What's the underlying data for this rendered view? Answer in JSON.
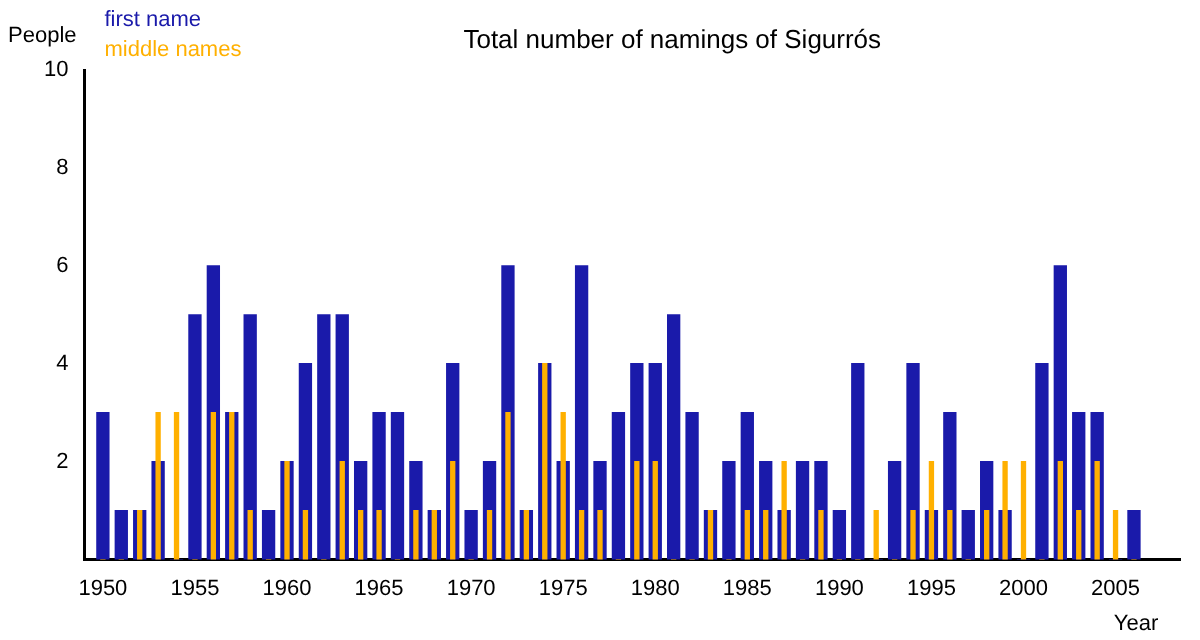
{
  "chart_data": {
    "type": "bar",
    "title": "Total number of namings of Sigurrós",
    "xlabel": "Year",
    "ylabel": "People",
    "x": [
      1950,
      1951,
      1952,
      1953,
      1954,
      1955,
      1956,
      1957,
      1958,
      1959,
      1960,
      1961,
      1962,
      1963,
      1964,
      1965,
      1966,
      1967,
      1968,
      1969,
      1970,
      1971,
      1972,
      1973,
      1974,
      1975,
      1976,
      1977,
      1978,
      1979,
      1980,
      1981,
      1982,
      1983,
      1984,
      1985,
      1986,
      1987,
      1988,
      1989,
      1990,
      1991,
      1992,
      1993,
      1994,
      1995,
      1996,
      1997,
      1998,
      1999,
      2000,
      2001,
      2002,
      2003,
      2004,
      2005,
      2006
    ],
    "series": [
      {
        "name": "first name",
        "color": "#1a1aaa",
        "values": [
          3,
          1,
          1,
          2,
          0,
          5,
          6,
          3,
          5,
          1,
          2,
          4,
          5,
          5,
          2,
          3,
          3,
          2,
          1,
          4,
          1,
          2,
          6,
          1,
          4,
          2,
          6,
          2,
          3,
          4,
          4,
          5,
          3,
          1,
          2,
          3,
          2,
          1,
          2,
          2,
          1,
          4,
          0,
          2,
          4,
          1,
          3,
          1,
          2,
          1,
          0,
          4,
          6,
          3,
          3,
          0,
          1
        ]
      },
      {
        "name": "middle names",
        "color": "#ffb000",
        "values": [
          0,
          0,
          1,
          3,
          3,
          0,
          3,
          3,
          1,
          0,
          2,
          1,
          0,
          2,
          1,
          1,
          0,
          1,
          1,
          2,
          0,
          1,
          3,
          1,
          4,
          3,
          1,
          1,
          0,
          2,
          2,
          0,
          0,
          1,
          0,
          1,
          1,
          2,
          0,
          1,
          0,
          0,
          1,
          0,
          1,
          2,
          1,
          0,
          1,
          2,
          2,
          0,
          2,
          1,
          2,
          1,
          0
        ]
      }
    ],
    "xlim": [
      1949,
      2008.5
    ],
    "xticks": [
      1950,
      1955,
      1960,
      1965,
      1970,
      1975,
      1980,
      1985,
      1990,
      1995,
      2000,
      2005
    ],
    "ylim": [
      0,
      10
    ],
    "yticks": [
      2,
      4,
      6,
      8,
      10
    ],
    "grid": false,
    "legend": "top left"
  }
}
